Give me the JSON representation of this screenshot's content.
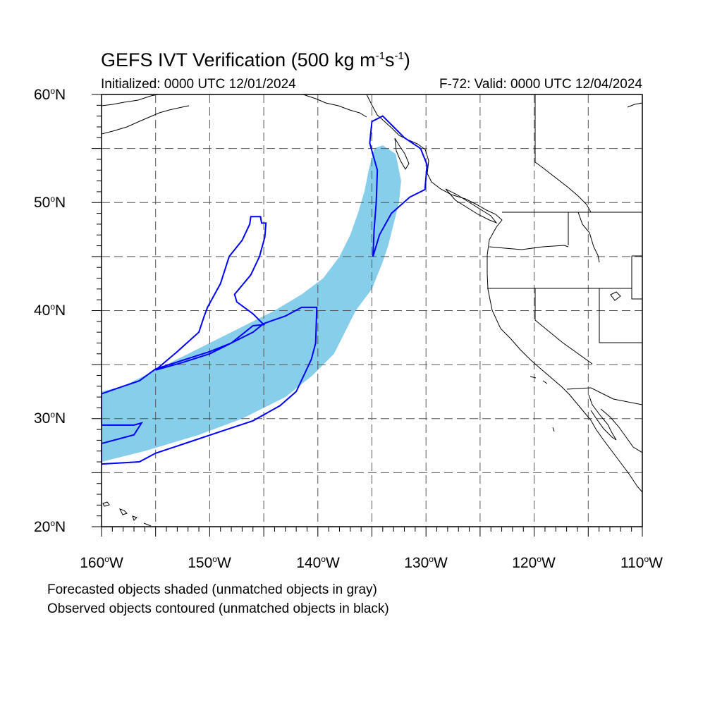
{
  "figure": {
    "title_main": "GEFS IVT Verification (500 kg m",
    "title_exp1": "-1",
    "title_mid": "s",
    "title_exp2": "-1",
    "title_end": ")",
    "init_label": "Initialized: 0000 UTC 12/01/2024",
    "valid_label": "F-72: Valid: 0000 UTC 12/04/2024"
  },
  "axes": {
    "lat_ticks": [
      {
        "num": "60",
        "hem": "N"
      },
      {
        "num": "50",
        "hem": "N"
      },
      {
        "num": "40",
        "hem": "N"
      },
      {
        "num": "30",
        "hem": "N"
      },
      {
        "num": "20",
        "hem": "N"
      }
    ],
    "lon_ticks": [
      {
        "num": "160",
        "hem": "W"
      },
      {
        "num": "150",
        "hem": "W"
      },
      {
        "num": "140",
        "hem": "W"
      },
      {
        "num": "130",
        "hem": "W"
      },
      {
        "num": "120",
        "hem": "W"
      },
      {
        "num": "110",
        "hem": "W"
      }
    ],
    "lon_range": [
      -160,
      -110
    ],
    "lat_range": [
      20,
      60
    ],
    "gridlines": "dashed every 5 degrees"
  },
  "legend": {
    "forecast_note": "Forecasted objects shaded (unmatched objects in gray)",
    "observed_note": "Observed objects contoured (unmatched objects in black)"
  },
  "colors": {
    "forecast_fill": "#87ceeb",
    "observed_contour": "#0000ff",
    "coastline": "#000000",
    "grid": "#555555"
  },
  "map_objects": {
    "forecast_object": {
      "name": "Forecast IVT object",
      "outline_lonlat": [
        [
          -160,
          26
        ],
        [
          -156,
          27
        ],
        [
          -151,
          28.5
        ],
        [
          -147,
          30
        ],
        [
          -143,
          32
        ],
        [
          -140.5,
          34
        ],
        [
          -138.5,
          36
        ],
        [
          -137.5,
          38
        ],
        [
          -136.5,
          40
        ],
        [
          -135,
          42
        ],
        [
          -134,
          44.5
        ],
        [
          -133.5,
          46
        ],
        [
          -133,
          48
        ],
        [
          -132.5,
          50
        ],
        [
          -132.3,
          52
        ],
        [
          -132.8,
          54.5
        ],
        [
          -134,
          55.3
        ],
        [
          -134.8,
          55
        ],
        [
          -135.3,
          53
        ],
        [
          -135.7,
          51
        ],
        [
          -136.3,
          49
        ],
        [
          -137,
          47
        ],
        [
          -138,
          45
        ],
        [
          -139.5,
          43
        ],
        [
          -141.5,
          41.5
        ],
        [
          -144,
          40
        ],
        [
          -147,
          38.5
        ],
        [
          -150,
          37
        ],
        [
          -153,
          35.5
        ],
        [
          -156,
          34
        ],
        [
          -158,
          33
        ],
        [
          -160,
          32.5
        ]
      ]
    },
    "observed_objects": [
      {
        "name": "Observed object south",
        "outline_lonlat": [
          [
            -160,
            25.8
          ],
          [
            -156.5,
            26
          ],
          [
            -155,
            26.8
          ],
          [
            -152,
            27.8
          ],
          [
            -149,
            28.8
          ],
          [
            -146,
            29.8
          ],
          [
            -143.5,
            31.2
          ],
          [
            -142,
            32.5
          ],
          [
            -141.3,
            34
          ],
          [
            -140.6,
            35.5
          ],
          [
            -140.2,
            37
          ],
          [
            -140.1,
            40.3
          ],
          [
            -141.5,
            40.3
          ],
          [
            -143,
            39.5
          ],
          [
            -145,
            38.8
          ],
          [
            -146,
            38
          ],
          [
            -148,
            37
          ],
          [
            -150,
            36.2
          ],
          [
            -152.5,
            35.4
          ],
          [
            -155,
            34.6
          ],
          [
            -156.5,
            33.5
          ],
          [
            -158,
            33
          ],
          [
            -160,
            32.3
          ],
          [
            -160,
            29.4
          ],
          [
            -157,
            29.4
          ],
          [
            -156.3,
            29.6
          ],
          [
            -157,
            28.5
          ],
          [
            -160,
            27.7
          ]
        ]
      },
      {
        "name": "Observed object north branch",
        "outline_lonlat": [
          [
            -150.2,
            40.3
          ],
          [
            -149,
            42.5
          ],
          [
            -148.2,
            45
          ],
          [
            -147,
            46.5
          ],
          [
            -146.3,
            48
          ],
          [
            -146.2,
            48.7
          ],
          [
            -145.3,
            48.7
          ],
          [
            -145.2,
            48.1
          ],
          [
            -144.8,
            48.1
          ],
          [
            -144.9,
            46.8
          ],
          [
            -145.4,
            45
          ],
          [
            -146.2,
            43.3
          ],
          [
            -147.7,
            41.5
          ],
          [
            -147.5,
            40.8
          ],
          [
            -146,
            39.7
          ],
          [
            -145,
            38.7
          ],
          [
            -146,
            38.6
          ],
          [
            -148,
            37
          ],
          [
            -150,
            36
          ],
          [
            -152.5,
            35.2
          ],
          [
            -155,
            34.5
          ],
          [
            -153,
            36.2
          ],
          [
            -151,
            38
          ],
          [
            -150.5,
            39.5
          ]
        ]
      },
      {
        "name": "Observed object Pacific Northwest",
        "outline_lonlat": [
          [
            -134.9,
            45
          ],
          [
            -134.3,
            47
          ],
          [
            -133.2,
            49
          ],
          [
            -131.5,
            50.5
          ],
          [
            -130.1,
            51.2
          ],
          [
            -129.9,
            53.5
          ],
          [
            -130.5,
            55
          ],
          [
            -132,
            56
          ],
          [
            -133,
            57
          ],
          [
            -134,
            58
          ],
          [
            -135,
            57.5
          ],
          [
            -135.2,
            55.5
          ],
          [
            -134.5,
            53
          ],
          [
            -134.6,
            50
          ],
          [
            -134.8,
            47.5
          ]
        ]
      }
    ]
  }
}
